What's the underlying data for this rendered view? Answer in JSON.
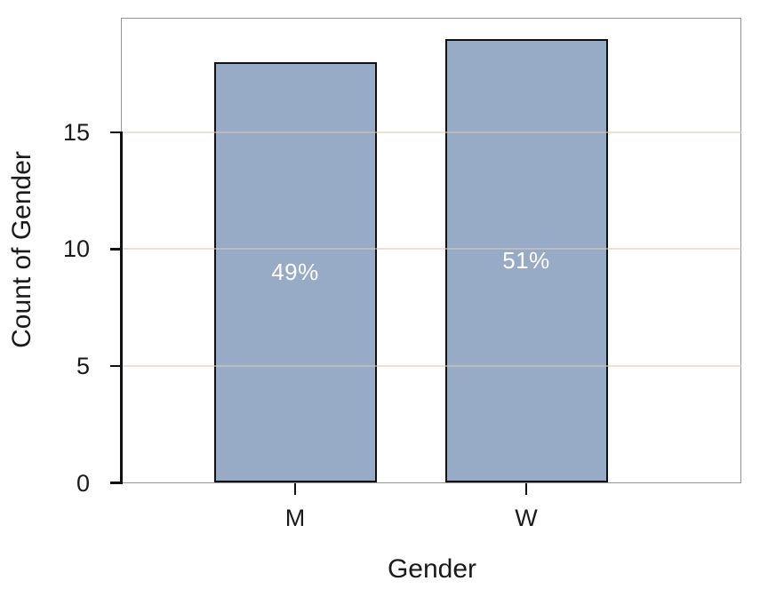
{
  "chart_data": {
    "type": "bar",
    "title": "",
    "xlabel": "Gender",
    "ylabel": "Count of Gender",
    "categories": [
      "M",
      "W"
    ],
    "values": [
      18,
      19
    ],
    "bar_labels": [
      "49%",
      "51%"
    ],
    "yticks": [
      0,
      5,
      10,
      15
    ],
    "ylim": [
      0,
      19.9
    ],
    "grid": "horizontal-only",
    "legend": "none",
    "colors": {
      "bar_fill": "#97ABC6",
      "bar_border": "#111111",
      "axis_line": "#111111",
      "gridline": "rgba(214,202,186,0.55)",
      "panel_border": "#949494",
      "text": "#1a1a1a",
      "bar_label_text": "#ffffff",
      "background": "#ffffff"
    }
  }
}
